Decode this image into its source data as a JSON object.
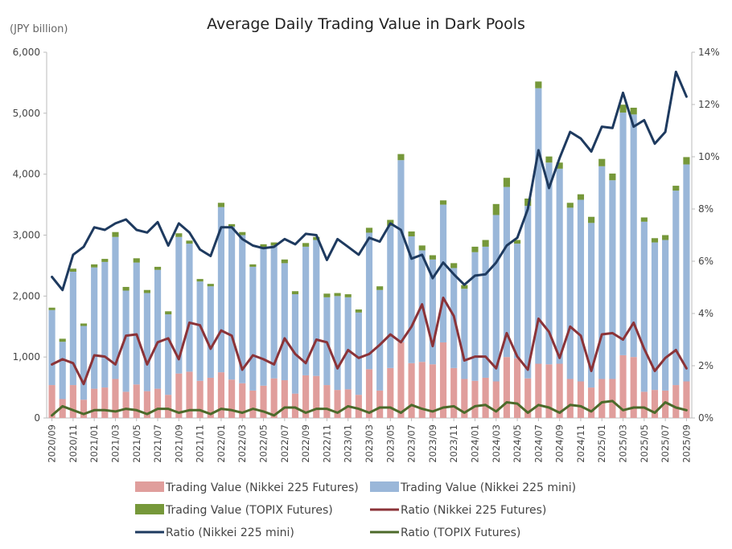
{
  "chart_data": {
    "type": "bar",
    "title": "Average Daily Trading Value in Dark Pools",
    "y_unit_label": "(JPY billion)",
    "ylim": [
      0,
      6000
    ],
    "yticks": [
      "0",
      "1,000",
      "2,000",
      "3,000",
      "4,000",
      "5,000",
      "6,000"
    ],
    "y2lim": [
      0,
      14
    ],
    "y2ticks": [
      "0%",
      "2%",
      "4%",
      "6%",
      "8%",
      "10%",
      "12%",
      "14%"
    ],
    "categories": [
      "2020/09",
      "2020/10",
      "2020/11",
      "2020/12",
      "2021/01",
      "2021/02",
      "2021/03",
      "2021/04",
      "2021/05",
      "2021/06",
      "2021/07",
      "2021/08",
      "2021/09",
      "2021/10",
      "2021/11",
      "2021/12",
      "2022/01",
      "2022/02",
      "2022/03",
      "2022/04",
      "2022/05",
      "2022/06",
      "2022/07",
      "2022/08",
      "2022/09",
      "2022/10",
      "2022/11",
      "2022/12",
      "2023/01",
      "2023/02",
      "2023/03",
      "2023/04",
      "2023/05",
      "2023/06",
      "2023/07",
      "2023/08",
      "2023/09",
      "2023/10",
      "2023/11",
      "2023/12",
      "2024/01",
      "2024/02",
      "2024/03",
      "2024/04",
      "2024/05",
      "2024/06",
      "2024/07",
      "2024/08",
      "2024/09",
      "2024/10",
      "2024/11",
      "2024/12",
      "2025/01",
      "2025/02",
      "2025/03",
      "2025/04",
      "2025/05",
      "2025/06",
      "2025/07",
      "2025/08",
      "2025/09"
    ],
    "x_tick_labels": [
      "2020/09",
      "2020/11",
      "2021/01",
      "2021/03",
      "2021/05",
      "2021/07",
      "2021/09",
      "2021/11",
      "2022/01",
      "2022/03",
      "2022/05",
      "2022/07",
      "2022/09",
      "2022/11",
      "2023/01",
      "2023/03",
      "2023/05",
      "2023/07",
      "2023/09",
      "2023/11",
      "2024/01",
      "2024/03",
      "2024/05",
      "2024/07",
      "2024/09",
      "2024/11",
      "2025/01",
      "2025/03",
      "2025/05",
      "2025/07",
      "2025/09"
    ],
    "series": [
      {
        "name": "Trading Value (Nikkei 225 Futures)",
        "kind": "bar",
        "axis": "left",
        "color": "#e09e9c",
        "values": [
          540,
          310,
          540,
          300,
          480,
          500,
          640,
          430,
          550,
          440,
          480,
          380,
          730,
          760,
          610,
          660,
          750,
          630,
          570,
          450,
          530,
          650,
          620,
          400,
          700,
          690,
          540,
          460,
          470,
          380,
          800,
          450,
          820,
          1240,
          900,
          920,
          880,
          1240,
          820,
          640,
          610,
          660,
          600,
          1000,
          980,
          650,
          890,
          880,
          890,
          640,
          600,
          500,
          640,
          640,
          1030,
          1000,
          430,
          460,
          450,
          540,
          600
        ]
      },
      {
        "name": "Trading Value (Nikkei 225 mini)",
        "kind": "bar",
        "axis": "left",
        "color": "#9ab7d9",
        "values": [
          1230,
          940,
          1860,
          1210,
          1990,
          2060,
          2330,
          1660,
          2000,
          1610,
          1950,
          1320,
          2240,
          2100,
          1630,
          1500,
          2710,
          2510,
          2430,
          2030,
          2270,
          2180,
          1920,
          1630,
          2110,
          2230,
          1440,
          1540,
          1510,
          1350,
          2240,
          1650,
          2330,
          2990,
          2080,
          1830,
          1720,
          2260,
          1640,
          1480,
          2110,
          2150,
          2730,
          2790,
          1880,
          2830,
          4520,
          3310,
          3200,
          2810,
          2980,
          2700,
          3490,
          3260,
          3980,
          3980,
          2790,
          2420,
          2470,
          3190,
          3560
        ]
      },
      {
        "name": "Trading Value (TOPIX Futures)",
        "kind": "bar",
        "axis": "left",
        "color": "#76983a",
        "values": [
          40,
          50,
          50,
          40,
          50,
          50,
          80,
          60,
          70,
          50,
          50,
          50,
          60,
          50,
          40,
          40,
          70,
          40,
          50,
          40,
          50,
          50,
          60,
          50,
          60,
          50,
          60,
          50,
          50,
          50,
          80,
          60,
          100,
          100,
          80,
          80,
          70,
          70,
          80,
          60,
          90,
          110,
          180,
          150,
          60,
          120,
          110,
          100,
          100,
          80,
          90,
          100,
          120,
          110,
          130,
          110,
          70,
          70,
          80,
          80,
          120
        ]
      },
      {
        "name": "Ratio (Nikkei 225 Futures)",
        "kind": "line",
        "axis": "right",
        "color": "#8b3338",
        "values": [
          2.05,
          2.25,
          2.1,
          1.3,
          2.4,
          2.35,
          2.05,
          3.15,
          3.2,
          2.05,
          2.9,
          3.05,
          2.25,
          3.65,
          3.55,
          2.65,
          3.35,
          3.15,
          1.85,
          2.4,
          2.25,
          2.05,
          3.05,
          2.45,
          2.1,
          3.0,
          2.9,
          1.9,
          2.6,
          2.3,
          2.45,
          2.8,
          3.2,
          2.9,
          3.5,
          4.35,
          2.75,
          4.6,
          3.9,
          2.2,
          2.35,
          2.35,
          1.9,
          3.25,
          2.35,
          1.85,
          3.8,
          3.3,
          2.3,
          3.5,
          3.15,
          1.8,
          3.2,
          3.25,
          3.0,
          3.65,
          2.65,
          1.8,
          2.3,
          2.6,
          1.9
        ]
      },
      {
        "name": "Ratio (Nikkei 225 mini)",
        "kind": "line",
        "axis": "right",
        "color": "#1e3a5f",
        "values": [
          5.4,
          4.9,
          6.25,
          6.55,
          7.3,
          7.2,
          7.45,
          7.6,
          7.2,
          7.1,
          7.5,
          6.6,
          7.45,
          7.1,
          6.45,
          6.2,
          7.3,
          7.3,
          6.85,
          6.6,
          6.5,
          6.55,
          6.85,
          6.65,
          7.05,
          7.0,
          6.05,
          6.85,
          6.55,
          6.25,
          6.9,
          6.75,
          7.45,
          7.2,
          6.1,
          6.25,
          5.35,
          5.95,
          5.5,
          5.1,
          5.45,
          5.5,
          5.95,
          6.6,
          6.9,
          8.0,
          10.25,
          8.8,
          9.95,
          10.95,
          10.7,
          10.2,
          11.15,
          11.1,
          12.45,
          11.15,
          11.4,
          10.5,
          10.95,
          13.25,
          12.3
        ]
      },
      {
        "name": "Ratio (TOPIX Futures)",
        "kind": "line",
        "axis": "right",
        "color": "#4c6a2a",
        "values": [
          0.1,
          0.45,
          0.3,
          0.15,
          0.3,
          0.3,
          0.25,
          0.35,
          0.3,
          0.15,
          0.35,
          0.35,
          0.2,
          0.3,
          0.3,
          0.15,
          0.35,
          0.3,
          0.2,
          0.35,
          0.25,
          0.1,
          0.4,
          0.4,
          0.2,
          0.35,
          0.35,
          0.2,
          0.45,
          0.35,
          0.2,
          0.4,
          0.4,
          0.2,
          0.5,
          0.35,
          0.25,
          0.4,
          0.45,
          0.2,
          0.45,
          0.5,
          0.25,
          0.6,
          0.55,
          0.2,
          0.5,
          0.4,
          0.2,
          0.5,
          0.45,
          0.25,
          0.6,
          0.65,
          0.3,
          0.4,
          0.4,
          0.2,
          0.6,
          0.4,
          0.3
        ]
      }
    ],
    "legend_position": "bottom",
    "grid": false
  }
}
